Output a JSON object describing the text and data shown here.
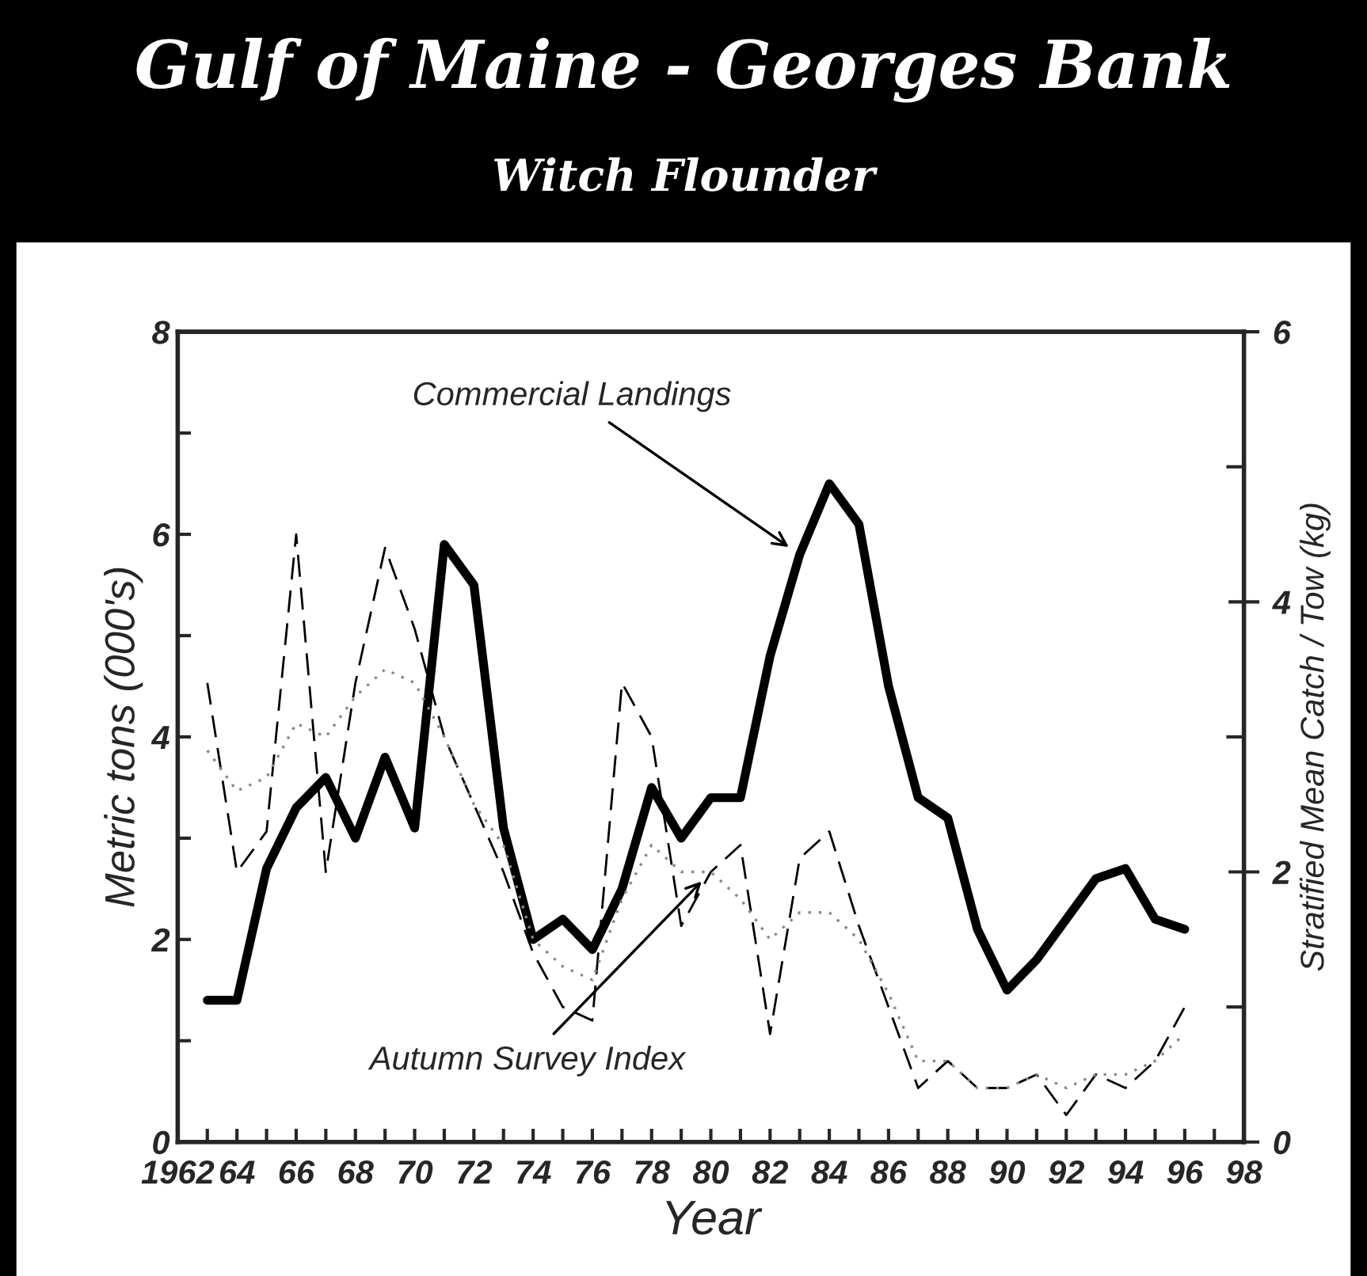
{
  "chart_data": {
    "type": "line",
    "title": "Gulf of Maine - Georges Bank",
    "subtitle": "Witch Flounder",
    "xlabel": "Year",
    "ylabel": "Metric tons (000's)",
    "y2label": "Stratified Mean Catch / Tow (kg)",
    "x": [
      1963,
      1964,
      1965,
      1966,
      1967,
      1968,
      1969,
      1970,
      1971,
      1972,
      1973,
      1974,
      1975,
      1976,
      1977,
      1978,
      1979,
      1980,
      1981,
      1982,
      1983,
      1984,
      1985,
      1986,
      1987,
      1988,
      1989,
      1990,
      1991,
      1992,
      1993,
      1994,
      1995,
      1996
    ],
    "series": [
      {
        "name": "Commercial Landings",
        "color": "#000000",
        "line_style": "solid",
        "values": [
          1.4,
          1.4,
          2.7,
          3.3,
          3.6,
          3.0,
          3.8,
          3.1,
          5.9,
          5.5,
          3.1,
          2.0,
          2.2,
          1.9,
          2.5,
          3.5,
          3.0,
          3.4,
          3.4,
          4.8,
          5.8,
          6.5,
          6.1,
          4.5,
          3.4,
          3.2,
          2.1,
          1.5,
          1.8,
          2.2,
          2.6,
          2.7,
          2.2,
          2.1
        ]
      },
      {
        "name": "Autumn Survey Index",
        "color": "#000000",
        "line_style": "dashed",
        "axis": "y2",
        "values": [
          3.4,
          2.0,
          2.3,
          4.5,
          2.0,
          3.4,
          4.4,
          3.8,
          3.0,
          2.5,
          2.0,
          1.4,
          1.0,
          0.9,
          3.4,
          3.0,
          1.6,
          2.0,
          2.2,
          0.8,
          2.1,
          2.3,
          1.6,
          1.0,
          0.4,
          0.6,
          0.4,
          0.4,
          0.5,
          0.2,
          0.5,
          0.4,
          0.6,
          1.0
        ]
      },
      {
        "color": "#888888",
        "line_style": "dotted",
        "axis": "y2",
        "values": [
          2.9,
          2.6,
          2.7,
          3.1,
          3.0,
          3.3,
          3.5,
          3.4,
          3.0,
          2.5,
          2.2,
          1.5,
          1.3,
          1.2,
          1.8,
          2.2,
          2.0,
          2.0,
          1.8,
          1.5,
          1.7,
          1.7,
          1.5,
          1.1,
          0.6,
          0.6,
          0.4,
          0.4,
          0.5,
          0.4,
          0.5,
          0.5,
          0.6,
          0.8
        ]
      }
    ],
    "xlim": [
      1962,
      1998
    ],
    "xticks": [
      {
        "value": 1962,
        "label": "1962"
      },
      {
        "value": 1963,
        "label": null
      },
      {
        "value": 1964,
        "label": "64"
      },
      {
        "value": 1965,
        "label": null
      },
      {
        "value": 1966,
        "label": "66"
      },
      {
        "value": 1967,
        "label": null
      },
      {
        "value": 1968,
        "label": "68"
      },
      {
        "value": 1969,
        "label": null
      },
      {
        "value": 1970,
        "label": "70"
      },
      {
        "value": 1971,
        "label": null
      },
      {
        "value": 1972,
        "label": "72"
      },
      {
        "value": 1973,
        "label": null
      },
      {
        "value": 1974,
        "label": "74"
      },
      {
        "value": 1975,
        "label": null
      },
      {
        "value": 1976,
        "label": "76"
      },
      {
        "value": 1977,
        "label": null
      },
      {
        "value": 1978,
        "label": "78"
      },
      {
        "value": 1979,
        "label": null
      },
      {
        "value": 1980,
        "label": "80"
      },
      {
        "value": 1981,
        "label": null
      },
      {
        "value": 1982,
        "label": "82"
      },
      {
        "value": 1983,
        "label": null
      },
      {
        "value": 1984,
        "label": "84"
      },
      {
        "value": 1985,
        "label": null
      },
      {
        "value": 1986,
        "label": "86"
      },
      {
        "value": 1987,
        "label": null
      },
      {
        "value": 1988,
        "label": "88"
      },
      {
        "value": 1989,
        "label": null
      },
      {
        "value": 1990,
        "label": "90"
      },
      {
        "value": 1991,
        "label": null
      },
      {
        "value": 1992,
        "label": "92"
      },
      {
        "value": 1993,
        "label": null
      },
      {
        "value": 1994,
        "label": "94"
      },
      {
        "value": 1995,
        "label": null
      },
      {
        "value": 1996,
        "label": "96"
      },
      {
        "value": 1997,
        "label": null
      },
      {
        "value": 1998,
        "label": "98"
      }
    ],
    "ylim": [
      0,
      8
    ],
    "yticks": [
      0,
      {
        "value": 1,
        "label": null
      },
      2,
      {
        "value": 3,
        "label": null
      },
      4,
      {
        "value": 5,
        "label": null
      },
      6,
      {
        "value": 7,
        "label": null
      },
      8
    ],
    "y2lim": [
      0,
      6
    ],
    "y2ticks": [
      0,
      {
        "value": 1,
        "label": null
      },
      2,
      {
        "value": 3,
        "label": null
      },
      4,
      {
        "value": 5,
        "label": null
      },
      6
    ],
    "grid": false,
    "marker": "none"
  }
}
